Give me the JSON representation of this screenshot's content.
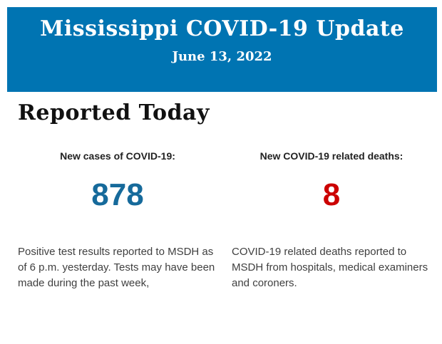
{
  "header": {
    "title": "Mississippi COVID-19 Update",
    "date": "June 13, 2022",
    "background_color": "#0074b2",
    "text_color": "#ffffff"
  },
  "section": {
    "title": "Reported Today"
  },
  "stats": {
    "cases": {
      "label": "New cases of COVID-19:",
      "value": "878",
      "value_color": "#166a9b",
      "description": "Positive test results reported to MSDH as of 6 p.m. yesterday. Tests may have been made during the past week,"
    },
    "deaths": {
      "label": "New COVID-19 related deaths:",
      "value": "8",
      "value_color": "#cc0000",
      "description": "COVID-19 related deaths reported to MSDH from hospitals, medical examiners and coroners."
    }
  }
}
